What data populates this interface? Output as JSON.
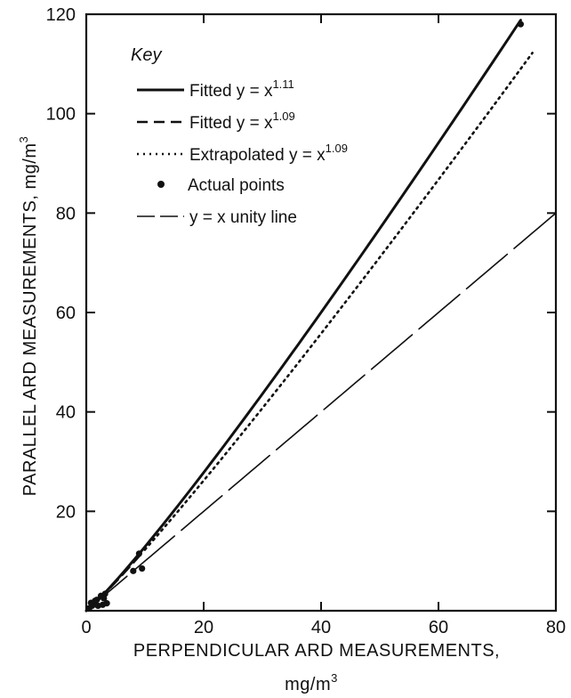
{
  "chart_data": {
    "type": "line",
    "title": "",
    "xlabel_line1": "PERPENDICULAR ARD MEASUREMENTS,",
    "xlabel_line2": "mg/m",
    "xlabel_unit_exp": "3",
    "ylabel": "PARALLEL ARD MEASUREMENTS, mg/m",
    "ylabel_unit_exp": "3",
    "xlim": [
      0,
      80
    ],
    "ylim": [
      0,
      120
    ],
    "x_ticks": [
      0,
      20,
      40,
      60,
      80
    ],
    "y_ticks": [
      20,
      40,
      60,
      80,
      100,
      120
    ],
    "x_tick_labels": [
      "0",
      "20",
      "40",
      "60",
      "80"
    ],
    "y_tick_labels": [
      "20",
      "40",
      "60",
      "80",
      "100",
      "120"
    ],
    "grid": false,
    "legend_title": "Key",
    "legend_position": "top-left",
    "series": [
      {
        "key_text": "Fitted y = x",
        "key_exp": "1.11",
        "style": "solid",
        "x_range": [
          0,
          74
        ],
        "exponent": 1.11
      },
      {
        "key_text": "Fitted y = x",
        "key_exp": "1.09",
        "style": "dashed",
        "x_range": [
          0,
          10
        ],
        "exponent": 1.09
      },
      {
        "key_text": "Extrapolated y = x",
        "key_exp": "1.09",
        "style": "dotted",
        "x_range": [
          10,
          76
        ],
        "exponent": 1.09
      },
      {
        "key_text": "Actual points",
        "key_exp": "",
        "style": "markers",
        "points": [
          [
            74,
            118
          ],
          [
            9,
            11.5
          ],
          [
            9.5,
            8.5
          ],
          [
            8,
            8
          ],
          [
            3,
            2.5
          ],
          [
            3.5,
            1.5
          ],
          [
            2,
            1
          ],
          [
            1.5,
            2
          ],
          [
            1,
            1
          ],
          [
            0.5,
            0.5
          ],
          [
            2.5,
            3
          ],
          [
            1.8,
            2.2
          ],
          [
            2.8,
            1.2
          ],
          [
            0.8,
            1.6
          ],
          [
            3.2,
            3.4
          ]
        ]
      },
      {
        "key_text": "y = x unity line",
        "key_exp": "",
        "style": "long-dash",
        "x_range": [
          0,
          80
        ],
        "exponent": 1.0
      }
    ]
  }
}
